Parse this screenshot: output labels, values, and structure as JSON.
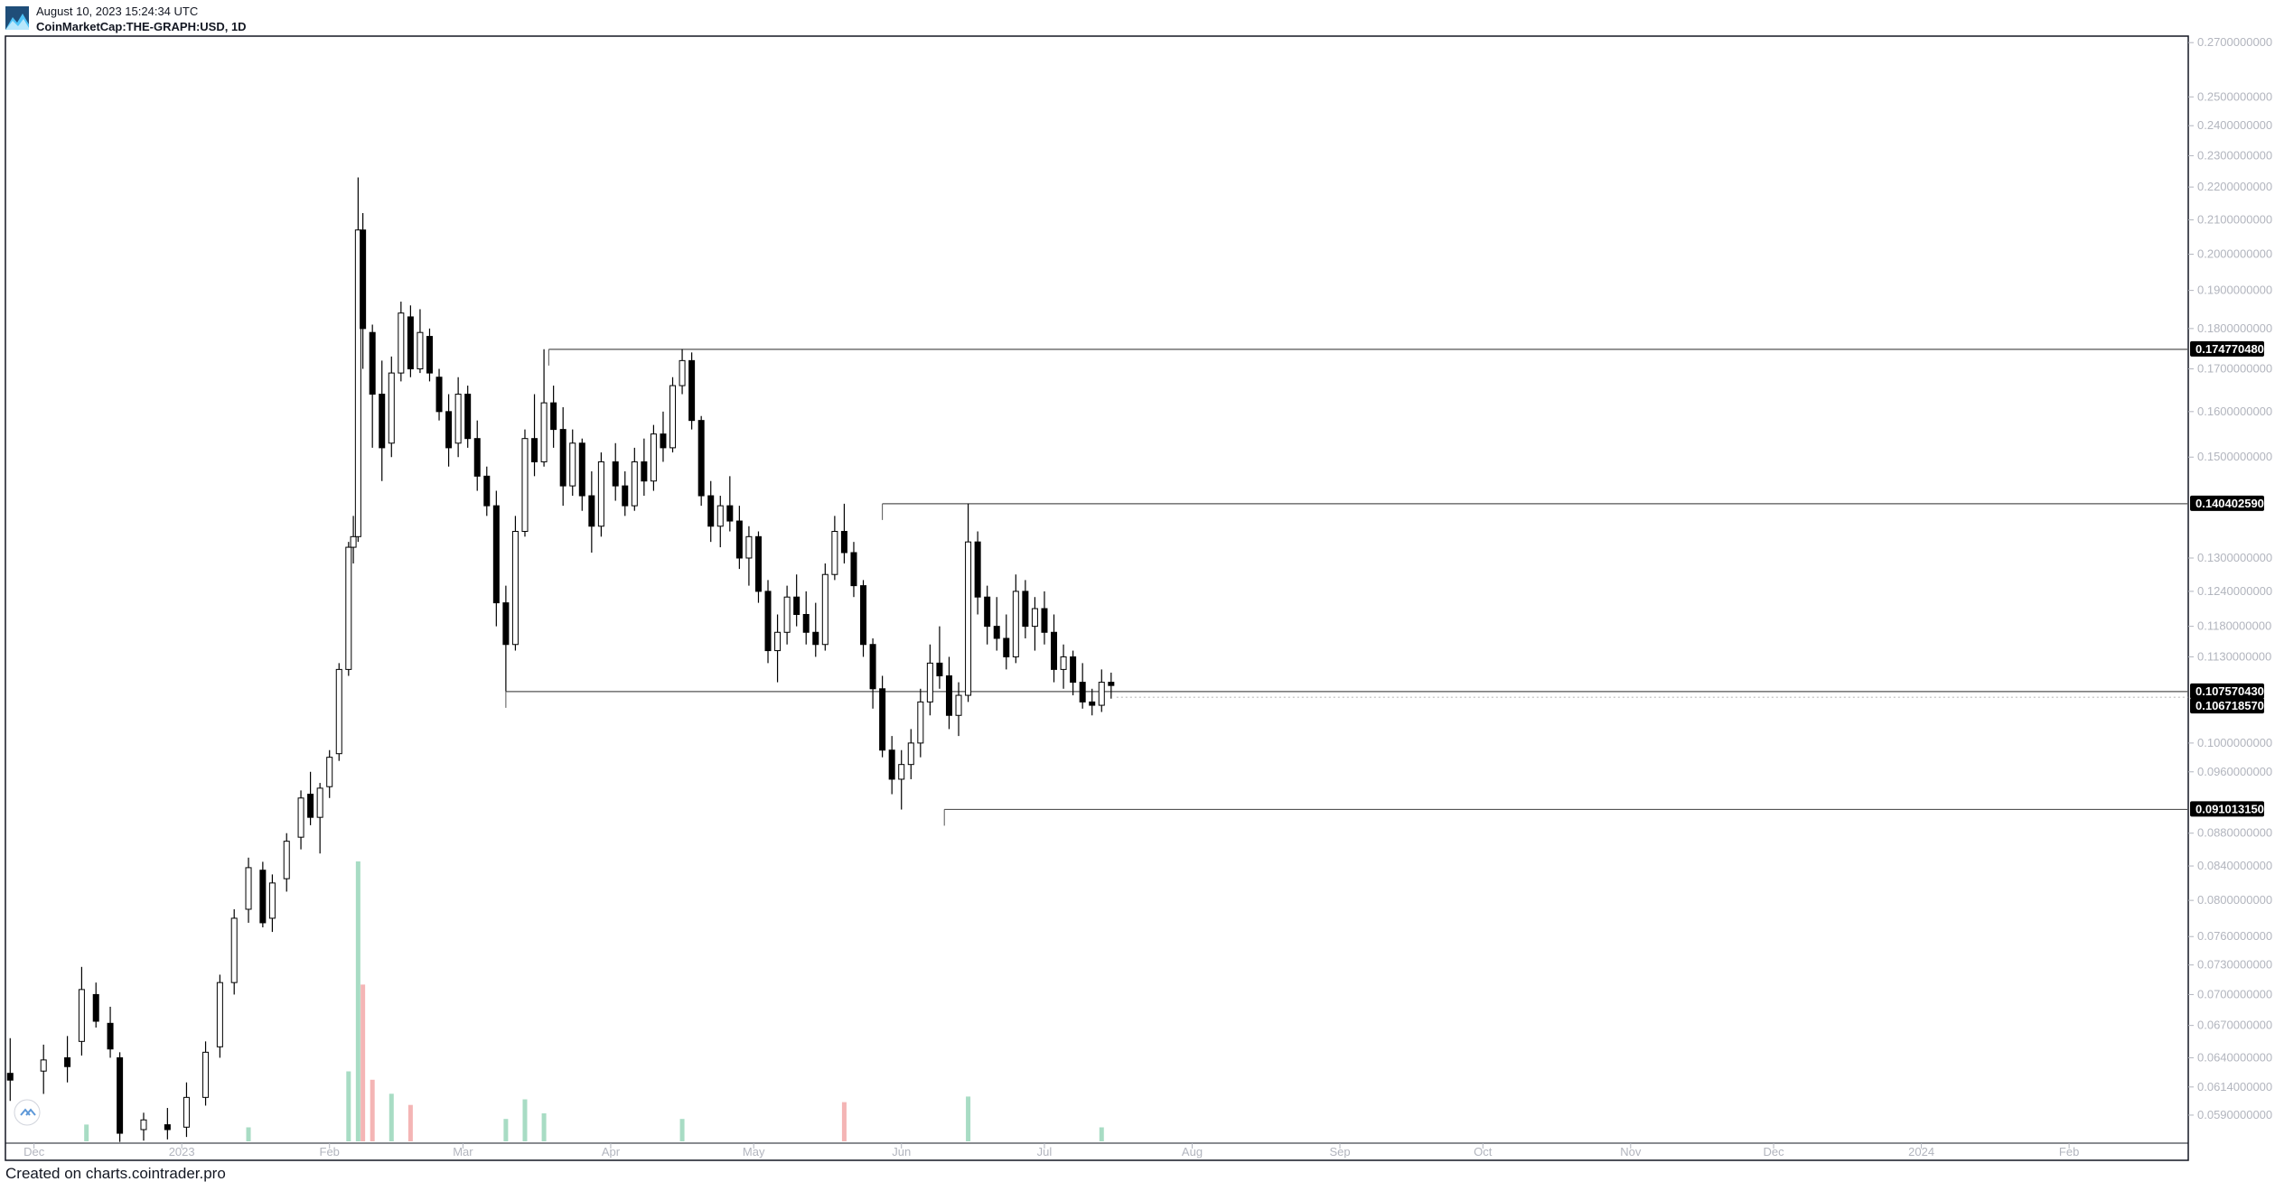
{
  "header": {
    "date": "August 10, 2023 15:24:34 UTC",
    "symbol": "CoinMarketCap:THE-GRAPH:USD, 1D"
  },
  "footer": {
    "text": "Created on charts.cointrader.pro"
  },
  "colors": {
    "candle_up": "#ffffff",
    "candle_down": "#000000",
    "wick": "#000000",
    "volume_up": "#a8dcc4",
    "volume_down": "#f4b5b5",
    "axis_text": "#b2b5be",
    "frame": "#131722",
    "level_line": "#555555",
    "price_tag_bg": "#000000"
  },
  "chart_data": {
    "type": "candlestick",
    "symbol": "CoinMarketCap:THE-GRAPH:USD",
    "interval": "1D",
    "y_scale": "log",
    "ylim": [
      0.0567,
      0.2725
    ],
    "y_ticks": [
      "0.2700000000",
      "0.2500000000",
      "0.2400000000",
      "0.2300000000",
      "0.2200000000",
      "0.2100000000",
      "0.2000000000",
      "0.1900000000",
      "0.1800000000",
      "0.1700000000",
      "0.1600000000",
      "0.1500000000",
      "0.1300000000",
      "0.1240000000",
      "0.1180000000",
      "0.1130000000",
      "0.1000000000",
      "0.0960000000",
      "0.0880000000",
      "0.0840000000",
      "0.0800000000",
      "0.0760000000",
      "0.0730000000",
      "0.0700000000",
      "0.0670000000",
      "0.0640000000",
      "0.0614000000",
      "0.0590000000"
    ],
    "x_labels": [
      "Dec",
      "2023",
      "Feb",
      "Mar",
      "Apr",
      "May",
      "Jun",
      "Jul",
      "Aug",
      "Sep",
      "Oct",
      "Nov",
      "Dec",
      "2024",
      "Feb"
    ],
    "x_label_dates": [
      "2022-12-01",
      "2023-01-01",
      "2023-02-01",
      "2023-03-01",
      "2023-04-01",
      "2023-05-01",
      "2023-06-01",
      "2023-07-01",
      "2023-08-01",
      "2023-09-01",
      "2023-10-01",
      "2023-11-01",
      "2023-12-01",
      "2024-01-01",
      "2024-02-01"
    ],
    "x_range": [
      "2022-11-25",
      "2024-02-26"
    ],
    "horizontal_levels": [
      {
        "price": 0.17477048,
        "label": "0.1747704800",
        "from_date": "2023-03-19"
      },
      {
        "price": 0.14040259,
        "label": "0.1404025900",
        "from_date": "2023-05-28"
      },
      {
        "price": 0.10757043,
        "label": "0.1075704300",
        "from_date": "2023-03-10"
      },
      {
        "price": 0.09101315,
        "label": "0.0910131500",
        "from_date": "2023-06-10"
      }
    ],
    "last_price_tag": "0.1067185700",
    "series": [
      {
        "name": "price",
        "ohlc": [
          {
            "date": "2022-11-26",
            "o": 0.0626,
            "h": 0.0658,
            "l": 0.0602,
            "c": 0.062
          },
          {
            "date": "2022-12-03",
            "o": 0.0628,
            "h": 0.0652,
            "l": 0.0608,
            "c": 0.0638
          },
          {
            "date": "2022-12-08",
            "o": 0.064,
            "h": 0.066,
            "l": 0.0618,
            "c": 0.0632
          },
          {
            "date": "2022-12-11",
            "o": 0.0655,
            "h": 0.0728,
            "l": 0.0642,
            "c": 0.0705
          },
          {
            "date": "2022-12-14",
            "o": 0.07,
            "h": 0.0712,
            "l": 0.0668,
            "c": 0.0674
          },
          {
            "date": "2022-12-17",
            "o": 0.0672,
            "h": 0.0688,
            "l": 0.064,
            "c": 0.0648
          },
          {
            "date": "2022-12-19",
            "o": 0.064,
            "h": 0.0645,
            "l": 0.0568,
            "c": 0.0575
          },
          {
            "date": "2022-12-24",
            "o": 0.0578,
            "h": 0.0592,
            "l": 0.0569,
            "c": 0.0586
          },
          {
            "date": "2022-12-29",
            "o": 0.0582,
            "h": 0.0596,
            "l": 0.057,
            "c": 0.0578
          },
          {
            "date": "2023-01-02",
            "o": 0.058,
            "h": 0.0618,
            "l": 0.0572,
            "c": 0.0605
          },
          {
            "date": "2023-01-06",
            "o": 0.0605,
            "h": 0.0655,
            "l": 0.0598,
            "c": 0.0645
          },
          {
            "date": "2023-01-09",
            "o": 0.065,
            "h": 0.072,
            "l": 0.064,
            "c": 0.0712
          },
          {
            "date": "2023-01-12",
            "o": 0.0712,
            "h": 0.079,
            "l": 0.07,
            "c": 0.078
          },
          {
            "date": "2023-01-15",
            "o": 0.079,
            "h": 0.085,
            "l": 0.0775,
            "c": 0.0838
          },
          {
            "date": "2023-01-18",
            "o": 0.0835,
            "h": 0.0845,
            "l": 0.077,
            "c": 0.0775
          },
          {
            "date": "2023-01-20",
            "o": 0.078,
            "h": 0.083,
            "l": 0.0765,
            "c": 0.082
          },
          {
            "date": "2023-01-23",
            "o": 0.0825,
            "h": 0.088,
            "l": 0.081,
            "c": 0.087
          },
          {
            "date": "2023-01-26",
            "o": 0.0875,
            "h": 0.0935,
            "l": 0.086,
            "c": 0.0925
          },
          {
            "date": "2023-01-28",
            "o": 0.093,
            "h": 0.096,
            "l": 0.089,
            "c": 0.09
          },
          {
            "date": "2023-01-30",
            "o": 0.09,
            "h": 0.0945,
            "l": 0.0855,
            "c": 0.0938
          },
          {
            "date": "2023-02-01",
            "o": 0.094,
            "h": 0.099,
            "l": 0.0925,
            "c": 0.098
          },
          {
            "date": "2023-02-03",
            "o": 0.0985,
            "h": 0.112,
            "l": 0.0975,
            "c": 0.111
          },
          {
            "date": "2023-02-05",
            "o": 0.111,
            "h": 0.133,
            "l": 0.11,
            "c": 0.132
          },
          {
            "date": "2023-02-06",
            "o": 0.132,
            "h": 0.138,
            "l": 0.129,
            "c": 0.134
          },
          {
            "date": "2023-02-07",
            "o": 0.134,
            "h": 0.223,
            "l": 0.133,
            "c": 0.207
          },
          {
            "date": "2023-02-08",
            "o": 0.207,
            "h": 0.212,
            "l": 0.17,
            "c": 0.18
          },
          {
            "date": "2023-02-10",
            "o": 0.179,
            "h": 0.181,
            "l": 0.152,
            "c": 0.164
          },
          {
            "date": "2023-02-12",
            "o": 0.164,
            "h": 0.172,
            "l": 0.145,
            "c": 0.152
          },
          {
            "date": "2023-02-14",
            "o": 0.153,
            "h": 0.173,
            "l": 0.15,
            "c": 0.169
          },
          {
            "date": "2023-02-16",
            "o": 0.169,
            "h": 0.187,
            "l": 0.167,
            "c": 0.184
          },
          {
            "date": "2023-02-18",
            "o": 0.183,
            "h": 0.186,
            "l": 0.168,
            "c": 0.17
          },
          {
            "date": "2023-02-20",
            "o": 0.17,
            "h": 0.185,
            "l": 0.169,
            "c": 0.179
          },
          {
            "date": "2023-02-22",
            "o": 0.178,
            "h": 0.18,
            "l": 0.167,
            "c": 0.169
          },
          {
            "date": "2023-02-24",
            "o": 0.168,
            "h": 0.17,
            "l": 0.158,
            "c": 0.16
          },
          {
            "date": "2023-02-26",
            "o": 0.16,
            "h": 0.164,
            "l": 0.148,
            "c": 0.152
          },
          {
            "date": "2023-02-28",
            "o": 0.153,
            "h": 0.168,
            "l": 0.15,
            "c": 0.164
          },
          {
            "date": "2023-03-02",
            "o": 0.164,
            "h": 0.166,
            "l": 0.152,
            "c": 0.154
          },
          {
            "date": "2023-03-04",
            "o": 0.154,
            "h": 0.158,
            "l": 0.143,
            "c": 0.146
          },
          {
            "date": "2023-03-06",
            "o": 0.146,
            "h": 0.148,
            "l": 0.138,
            "c": 0.14
          },
          {
            "date": "2023-03-08",
            "o": 0.14,
            "h": 0.143,
            "l": 0.118,
            "c": 0.122
          },
          {
            "date": "2023-03-10",
            "o": 0.122,
            "h": 0.125,
            "l": 0.1076,
            "c": 0.115
          },
          {
            "date": "2023-03-12",
            "o": 0.115,
            "h": 0.138,
            "l": 0.114,
            "c": 0.135
          },
          {
            "date": "2023-03-14",
            "o": 0.135,
            "h": 0.156,
            "l": 0.134,
            "c": 0.154
          },
          {
            "date": "2023-03-16",
            "o": 0.154,
            "h": 0.164,
            "l": 0.146,
            "c": 0.149
          },
          {
            "date": "2023-03-18",
            "o": 0.149,
            "h": 0.1748,
            "l": 0.148,
            "c": 0.162
          },
          {
            "date": "2023-03-20",
            "o": 0.162,
            "h": 0.166,
            "l": 0.152,
            "c": 0.156
          },
          {
            "date": "2023-03-22",
            "o": 0.156,
            "h": 0.161,
            "l": 0.14,
            "c": 0.144
          },
          {
            "date": "2023-03-24",
            "o": 0.144,
            "h": 0.156,
            "l": 0.142,
            "c": 0.153
          },
          {
            "date": "2023-03-26",
            "o": 0.153,
            "h": 0.154,
            "l": 0.139,
            "c": 0.142
          },
          {
            "date": "2023-03-28",
            "o": 0.142,
            "h": 0.147,
            "l": 0.131,
            "c": 0.136
          },
          {
            "date": "2023-03-30",
            "o": 0.136,
            "h": 0.151,
            "l": 0.134,
            "c": 0.149
          },
          {
            "date": "2023-04-02",
            "o": 0.149,
            "h": 0.153,
            "l": 0.141,
            "c": 0.144
          },
          {
            "date": "2023-04-04",
            "o": 0.144,
            "h": 0.147,
            "l": 0.138,
            "c": 0.14
          },
          {
            "date": "2023-04-06",
            "o": 0.14,
            "h": 0.152,
            "l": 0.139,
            "c": 0.149
          },
          {
            "date": "2023-04-08",
            "o": 0.149,
            "h": 0.154,
            "l": 0.142,
            "c": 0.145
          },
          {
            "date": "2023-04-10",
            "o": 0.145,
            "h": 0.157,
            "l": 0.143,
            "c": 0.155
          },
          {
            "date": "2023-04-12",
            "o": 0.155,
            "h": 0.16,
            "l": 0.149,
            "c": 0.152
          },
          {
            "date": "2023-04-14",
            "o": 0.152,
            "h": 0.168,
            "l": 0.151,
            "c": 0.166
          },
          {
            "date": "2023-04-16",
            "o": 0.166,
            "h": 0.1748,
            "l": 0.164,
            "c": 0.172
          },
          {
            "date": "2023-04-18",
            "o": 0.172,
            "h": 0.174,
            "l": 0.156,
            "c": 0.158
          },
          {
            "date": "2023-04-20",
            "o": 0.158,
            "h": 0.159,
            "l": 0.14,
            "c": 0.142
          },
          {
            "date": "2023-04-22",
            "o": 0.142,
            "h": 0.145,
            "l": 0.133,
            "c": 0.136
          },
          {
            "date": "2023-04-24",
            "o": 0.136,
            "h": 0.142,
            "l": 0.132,
            "c": 0.14
          },
          {
            "date": "2023-04-26",
            "o": 0.14,
            "h": 0.146,
            "l": 0.135,
            "c": 0.137
          },
          {
            "date": "2023-04-28",
            "o": 0.137,
            "h": 0.14,
            "l": 0.128,
            "c": 0.13
          },
          {
            "date": "2023-04-30",
            "o": 0.13,
            "h": 0.136,
            "l": 0.125,
            "c": 0.134
          },
          {
            "date": "2023-05-02",
            "o": 0.134,
            "h": 0.135,
            "l": 0.122,
            "c": 0.124
          },
          {
            "date": "2023-05-04",
            "o": 0.124,
            "h": 0.126,
            "l": 0.112,
            "c": 0.114
          },
          {
            "date": "2023-05-06",
            "o": 0.114,
            "h": 0.12,
            "l": 0.109,
            "c": 0.117
          },
          {
            "date": "2023-05-08",
            "o": 0.117,
            "h": 0.125,
            "l": 0.115,
            "c": 0.123
          },
          {
            "date": "2023-05-10",
            "o": 0.123,
            "h": 0.127,
            "l": 0.118,
            "c": 0.12
          },
          {
            "date": "2023-05-12",
            "o": 0.12,
            "h": 0.124,
            "l": 0.115,
            "c": 0.117
          },
          {
            "date": "2023-05-14",
            "o": 0.117,
            "h": 0.122,
            "l": 0.113,
            "c": 0.115
          },
          {
            "date": "2023-05-16",
            "o": 0.115,
            "h": 0.129,
            "l": 0.114,
            "c": 0.127
          },
          {
            "date": "2023-05-18",
            "o": 0.127,
            "h": 0.138,
            "l": 0.126,
            "c": 0.135
          },
          {
            "date": "2023-05-20",
            "o": 0.135,
            "h": 0.1404,
            "l": 0.129,
            "c": 0.131
          },
          {
            "date": "2023-05-22",
            "o": 0.131,
            "h": 0.133,
            "l": 0.123,
            "c": 0.125
          },
          {
            "date": "2023-05-24",
            "o": 0.125,
            "h": 0.126,
            "l": 0.113,
            "c": 0.115
          },
          {
            "date": "2023-05-26",
            "o": 0.115,
            "h": 0.116,
            "l": 0.105,
            "c": 0.108
          },
          {
            "date": "2023-05-28",
            "o": 0.108,
            "h": 0.11,
            "l": 0.098,
            "c": 0.099
          },
          {
            "date": "2023-05-30",
            "o": 0.099,
            "h": 0.101,
            "l": 0.093,
            "c": 0.095
          },
          {
            "date": "2023-06-01",
            "o": 0.095,
            "h": 0.099,
            "l": 0.091,
            "c": 0.097
          },
          {
            "date": "2023-06-03",
            "o": 0.097,
            "h": 0.102,
            "l": 0.095,
            "c": 0.1
          },
          {
            "date": "2023-06-05",
            "o": 0.1,
            "h": 0.108,
            "l": 0.098,
            "c": 0.106
          },
          {
            "date": "2023-06-07",
            "o": 0.106,
            "h": 0.115,
            "l": 0.104,
            "c": 0.112
          },
          {
            "date": "2023-06-09",
            "o": 0.112,
            "h": 0.118,
            "l": 0.108,
            "c": 0.11
          },
          {
            "date": "2023-06-11",
            "o": 0.11,
            "h": 0.113,
            "l": 0.102,
            "c": 0.104
          },
          {
            "date": "2023-06-13",
            "o": 0.104,
            "h": 0.109,
            "l": 0.101,
            "c": 0.107
          },
          {
            "date": "2023-06-15",
            "o": 0.107,
            "h": 0.1404,
            "l": 0.106,
            "c": 0.133
          },
          {
            "date": "2023-06-17",
            "o": 0.133,
            "h": 0.135,
            "l": 0.12,
            "c": 0.123
          },
          {
            "date": "2023-06-19",
            "o": 0.123,
            "h": 0.125,
            "l": 0.115,
            "c": 0.118
          },
          {
            "date": "2023-06-21",
            "o": 0.118,
            "h": 0.123,
            "l": 0.114,
            "c": 0.116
          },
          {
            "date": "2023-06-23",
            "o": 0.116,
            "h": 0.12,
            "l": 0.111,
            "c": 0.113
          },
          {
            "date": "2023-06-25",
            "o": 0.113,
            "h": 0.127,
            "l": 0.112,
            "c": 0.124
          },
          {
            "date": "2023-06-27",
            "o": 0.124,
            "h": 0.126,
            "l": 0.116,
            "c": 0.118
          },
          {
            "date": "2023-06-29",
            "o": 0.118,
            "h": 0.123,
            "l": 0.114,
            "c": 0.121
          },
          {
            "date": "2023-07-01",
            "o": 0.121,
            "h": 0.124,
            "l": 0.115,
            "c": 0.117
          },
          {
            "date": "2023-07-03",
            "o": 0.117,
            "h": 0.12,
            "l": 0.109,
            "c": 0.111
          },
          {
            "date": "2023-07-05",
            "o": 0.111,
            "h": 0.115,
            "l": 0.108,
            "c": 0.113
          },
          {
            "date": "2023-07-07",
            "o": 0.113,
            "h": 0.114,
            "l": 0.107,
            "c": 0.109
          },
          {
            "date": "2023-07-09",
            "o": 0.109,
            "h": 0.112,
            "l": 0.105,
            "c": 0.106
          },
          {
            "date": "2023-07-11",
            "o": 0.106,
            "h": 0.108,
            "l": 0.104,
            "c": 0.1055
          },
          {
            "date": "2023-07-13",
            "o": 0.1055,
            "h": 0.111,
            "l": 0.1045,
            "c": 0.109
          },
          {
            "date": "2023-07-15",
            "o": 0.109,
            "h": 0.1105,
            "l": 0.1065,
            "c": 0.1085
          }
        ]
      }
    ],
    "volume": [
      {
        "date": "2022-12-12",
        "v": 0.06,
        "dir": "up"
      },
      {
        "date": "2023-01-15",
        "v": 0.05,
        "dir": "up"
      },
      {
        "date": "2023-02-05",
        "v": 0.25,
        "dir": "up"
      },
      {
        "date": "2023-02-07",
        "v": 1.0,
        "dir": "up"
      },
      {
        "date": "2023-02-08",
        "v": 0.56,
        "dir": "down"
      },
      {
        "date": "2023-02-10",
        "v": 0.22,
        "dir": "down"
      },
      {
        "date": "2023-02-14",
        "v": 0.17,
        "dir": "up"
      },
      {
        "date": "2023-02-18",
        "v": 0.13,
        "dir": "down"
      },
      {
        "date": "2023-03-10",
        "v": 0.08,
        "dir": "up"
      },
      {
        "date": "2023-03-14",
        "v": 0.15,
        "dir": "up"
      },
      {
        "date": "2023-03-18",
        "v": 0.1,
        "dir": "up"
      },
      {
        "date": "2023-04-16",
        "v": 0.08,
        "dir": "up"
      },
      {
        "date": "2023-05-20",
        "v": 0.14,
        "dir": "down"
      },
      {
        "date": "2023-06-15",
        "v": 0.16,
        "dir": "up"
      },
      {
        "date": "2023-07-13",
        "v": 0.05,
        "dir": "up"
      }
    ]
  }
}
